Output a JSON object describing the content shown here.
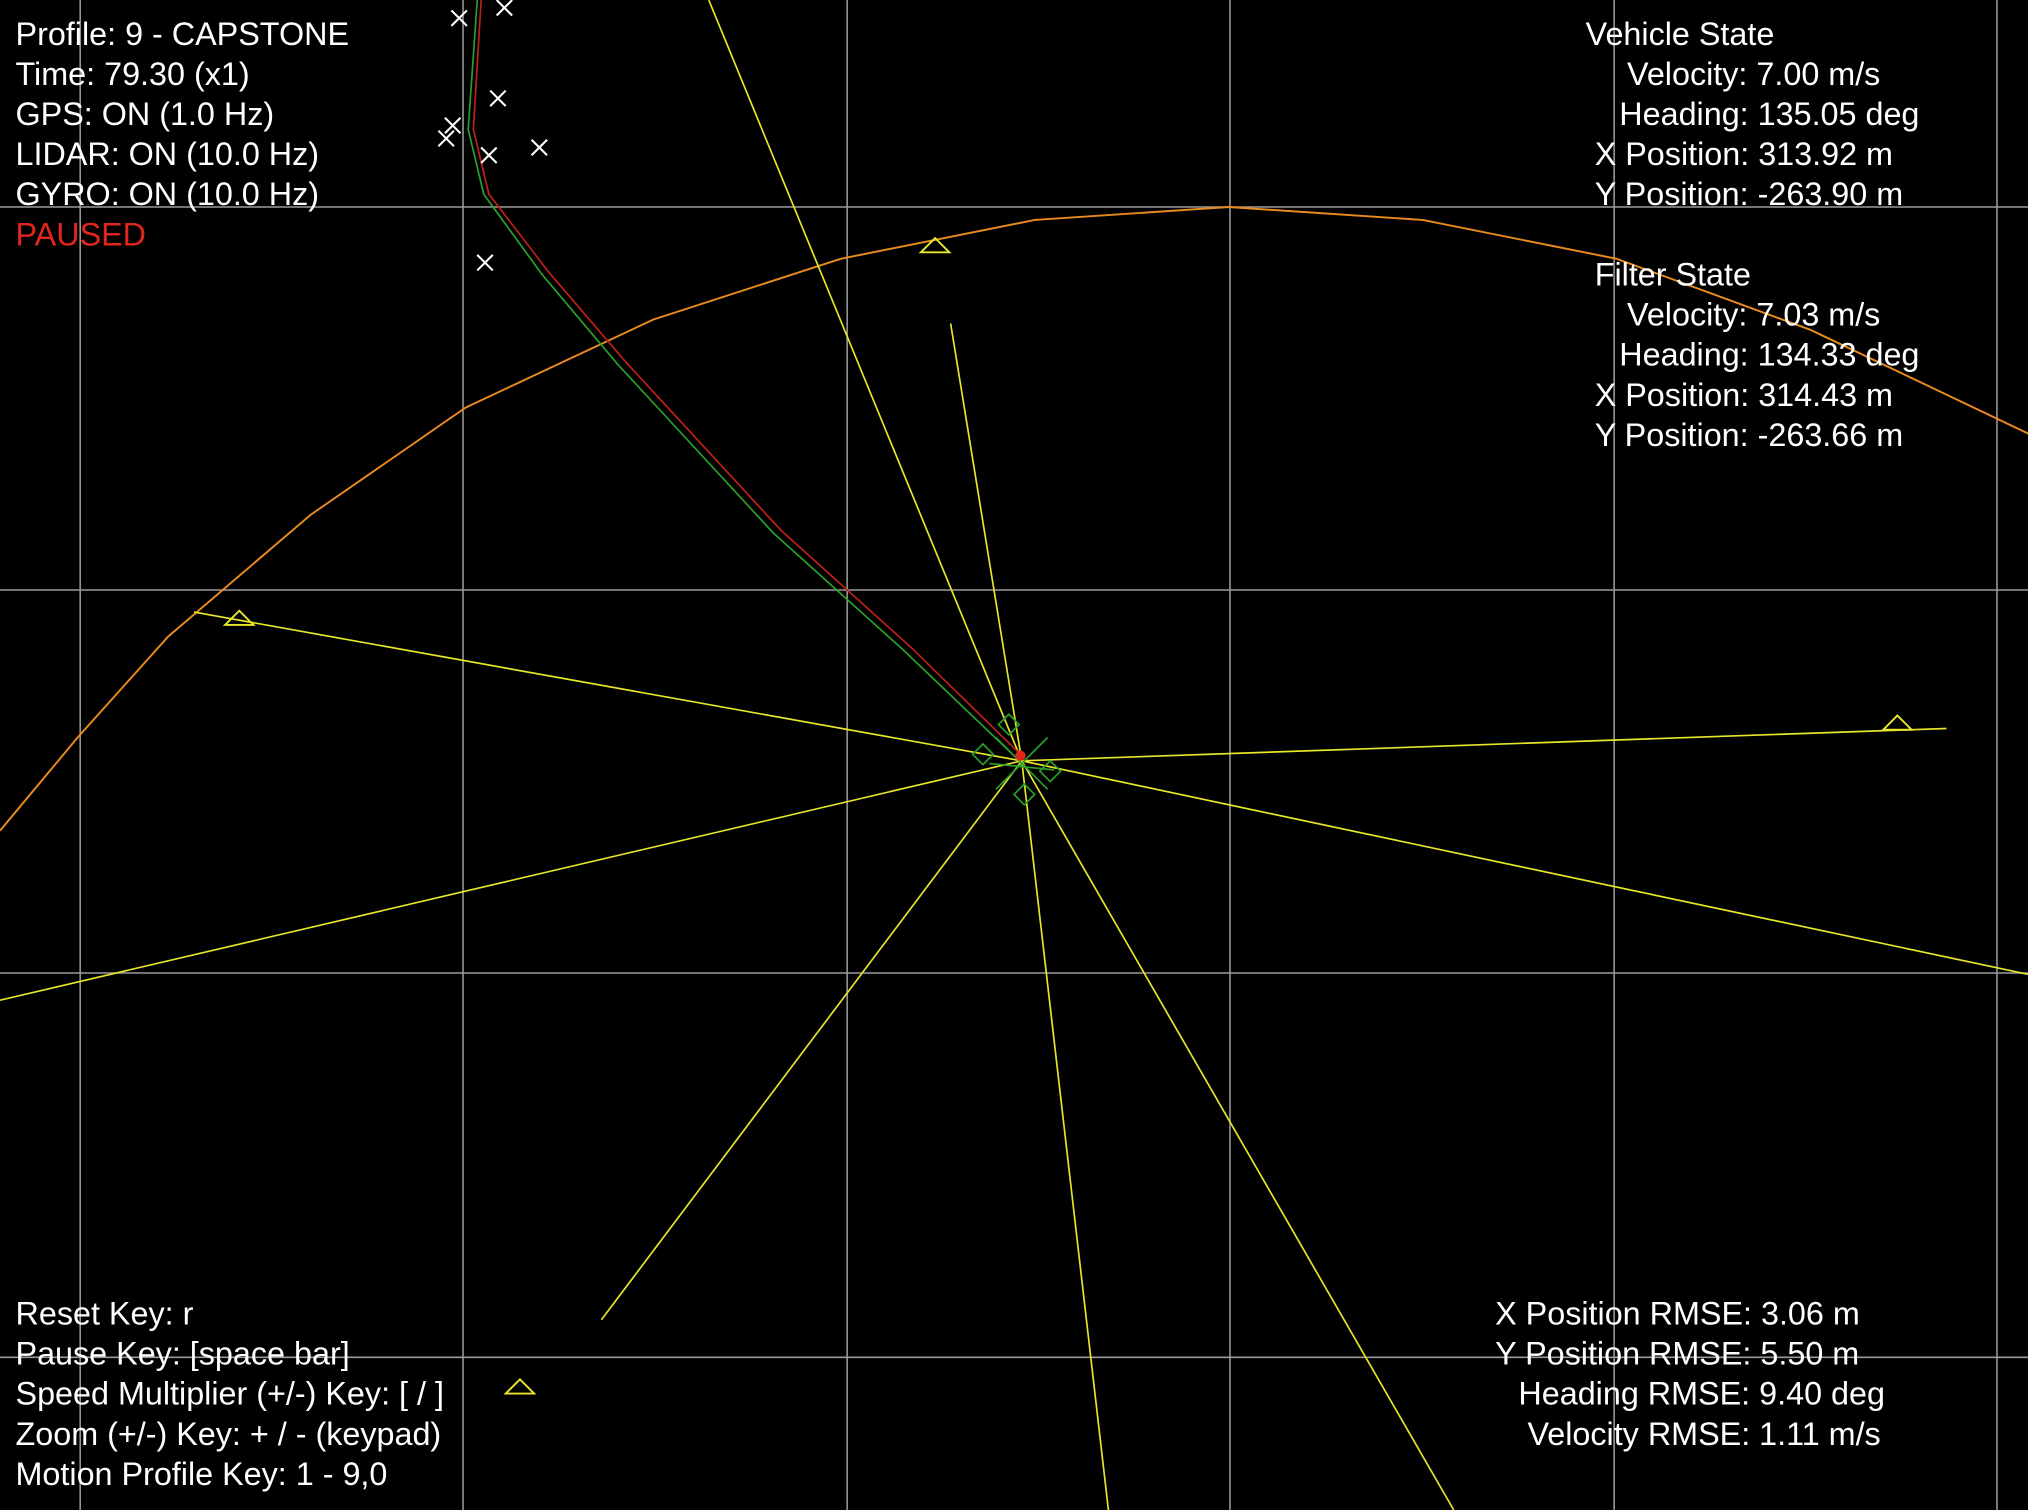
{
  "status": [
    "Profile: 9 - CAPSTONE",
    "Time: 79.30 (x1)",
    "GPS: ON (1.0 Hz)",
    "LIDAR: ON (10.0 Hz)",
    "GYRO: ON (10.0 Hz)"
  ],
  "paused": "PAUSED",
  "vehicle_state": {
    "title": "Vehicle State",
    "lines": [
      "Velocity: 7.00 m/s",
      "Heading: 135.05 deg",
      "X Position: 313.92 m",
      "Y Position: -263.90 m"
    ]
  },
  "filter_state": {
    "title": "Filter State",
    "lines": [
      "Velocity: 7.03 m/s",
      "Heading: 134.33 deg",
      "X Position: 314.43 m",
      "Y Position: -263.66 m"
    ]
  },
  "keys": [
    "Reset Key: r",
    "Pause Key: [space bar]",
    "Speed Multiplier (+/-) Key: [ / ]",
    "Zoom (+/-) Key: + / - (keypad)",
    "Motion Profile Key: 1 - 9,0"
  ],
  "rmse": [
    "X Position RMSE: 3.06 m",
    "Y Position RMSE: 5.50 m",
    "Heading RMSE: 9.40 deg",
    "Velocity RMSE: 1.11 m/s"
  ]
}
